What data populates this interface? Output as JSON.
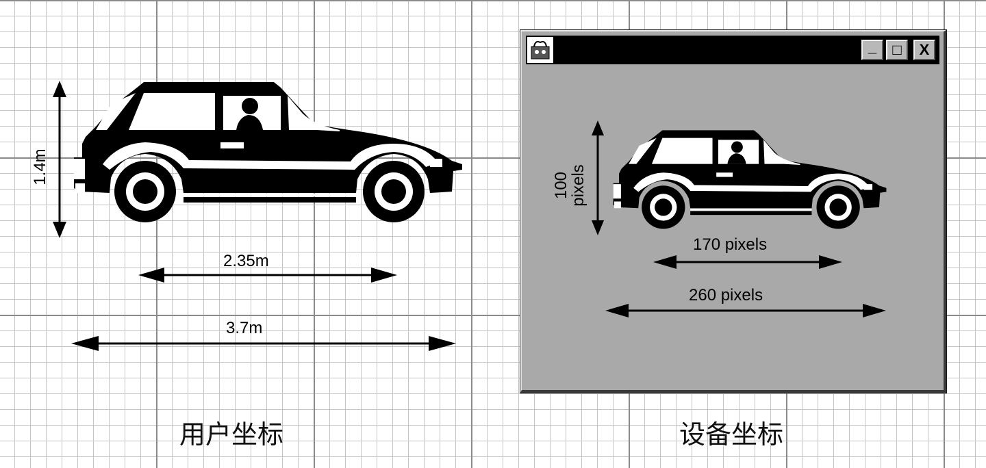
{
  "user_coordinates": {
    "height_label": "1.4m",
    "wheelbase_label": "2.35m",
    "length_label": "3.7m",
    "caption": "用户坐标"
  },
  "device_coordinates": {
    "height_label_line1": "100",
    "height_label_line2": "pixels",
    "wheelbase_label": "170 pixels",
    "length_label": "260 pixels",
    "caption": "设备坐标",
    "window_buttons": [
      "_",
      "□",
      "X"
    ]
  }
}
